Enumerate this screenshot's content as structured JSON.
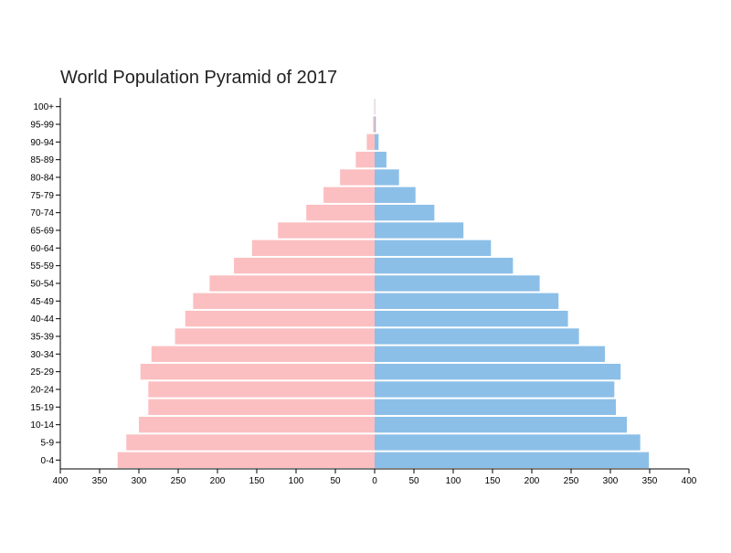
{
  "chart_data": {
    "type": "bar",
    "orientation": "horizontal",
    "layout": "population-pyramid",
    "title": "World Population Pyramid of 2017",
    "xlabel": "",
    "ylabel": "",
    "xlim": [
      -400,
      400
    ],
    "x_ticks": [
      -400,
      -350,
      -300,
      -250,
      -200,
      -150,
      -100,
      -50,
      0,
      50,
      100,
      150,
      200,
      250,
      300,
      350,
      400
    ],
    "x_tick_labels": [
      "400",
      "350",
      "300",
      "250",
      "200",
      "150",
      "100",
      "50",
      "0",
      "50",
      "100",
      "150",
      "200",
      "250",
      "300",
      "350",
      "400"
    ],
    "grid": false,
    "legend": "none",
    "categories": [
      "0-4",
      "5-9",
      "10-14",
      "15-19",
      "20-24",
      "25-29",
      "30-34",
      "35-39",
      "40-44",
      "45-49",
      "50-54",
      "55-59",
      "60-64",
      "65-69",
      "70-74",
      "75-79",
      "80-84",
      "85-89",
      "90-94",
      "95-99",
      "100+"
    ],
    "series": [
      {
        "side": "left",
        "color": "#fbbfc1",
        "values": [
          327,
          316,
          300,
          288,
          288,
          298,
          284,
          254,
          241,
          231,
          210,
          179,
          156,
          123,
          87,
          65,
          44,
          24,
          10,
          2,
          0.5
        ]
      },
      {
        "side": "right",
        "color": "#8bbfe8",
        "values": [
          349,
          338,
          321,
          307,
          305,
          313,
          293,
          260,
          246,
          234,
          210,
          176,
          148,
          113,
          76,
          52,
          31,
          15,
          5,
          1.5,
          0.5
        ]
      }
    ]
  }
}
